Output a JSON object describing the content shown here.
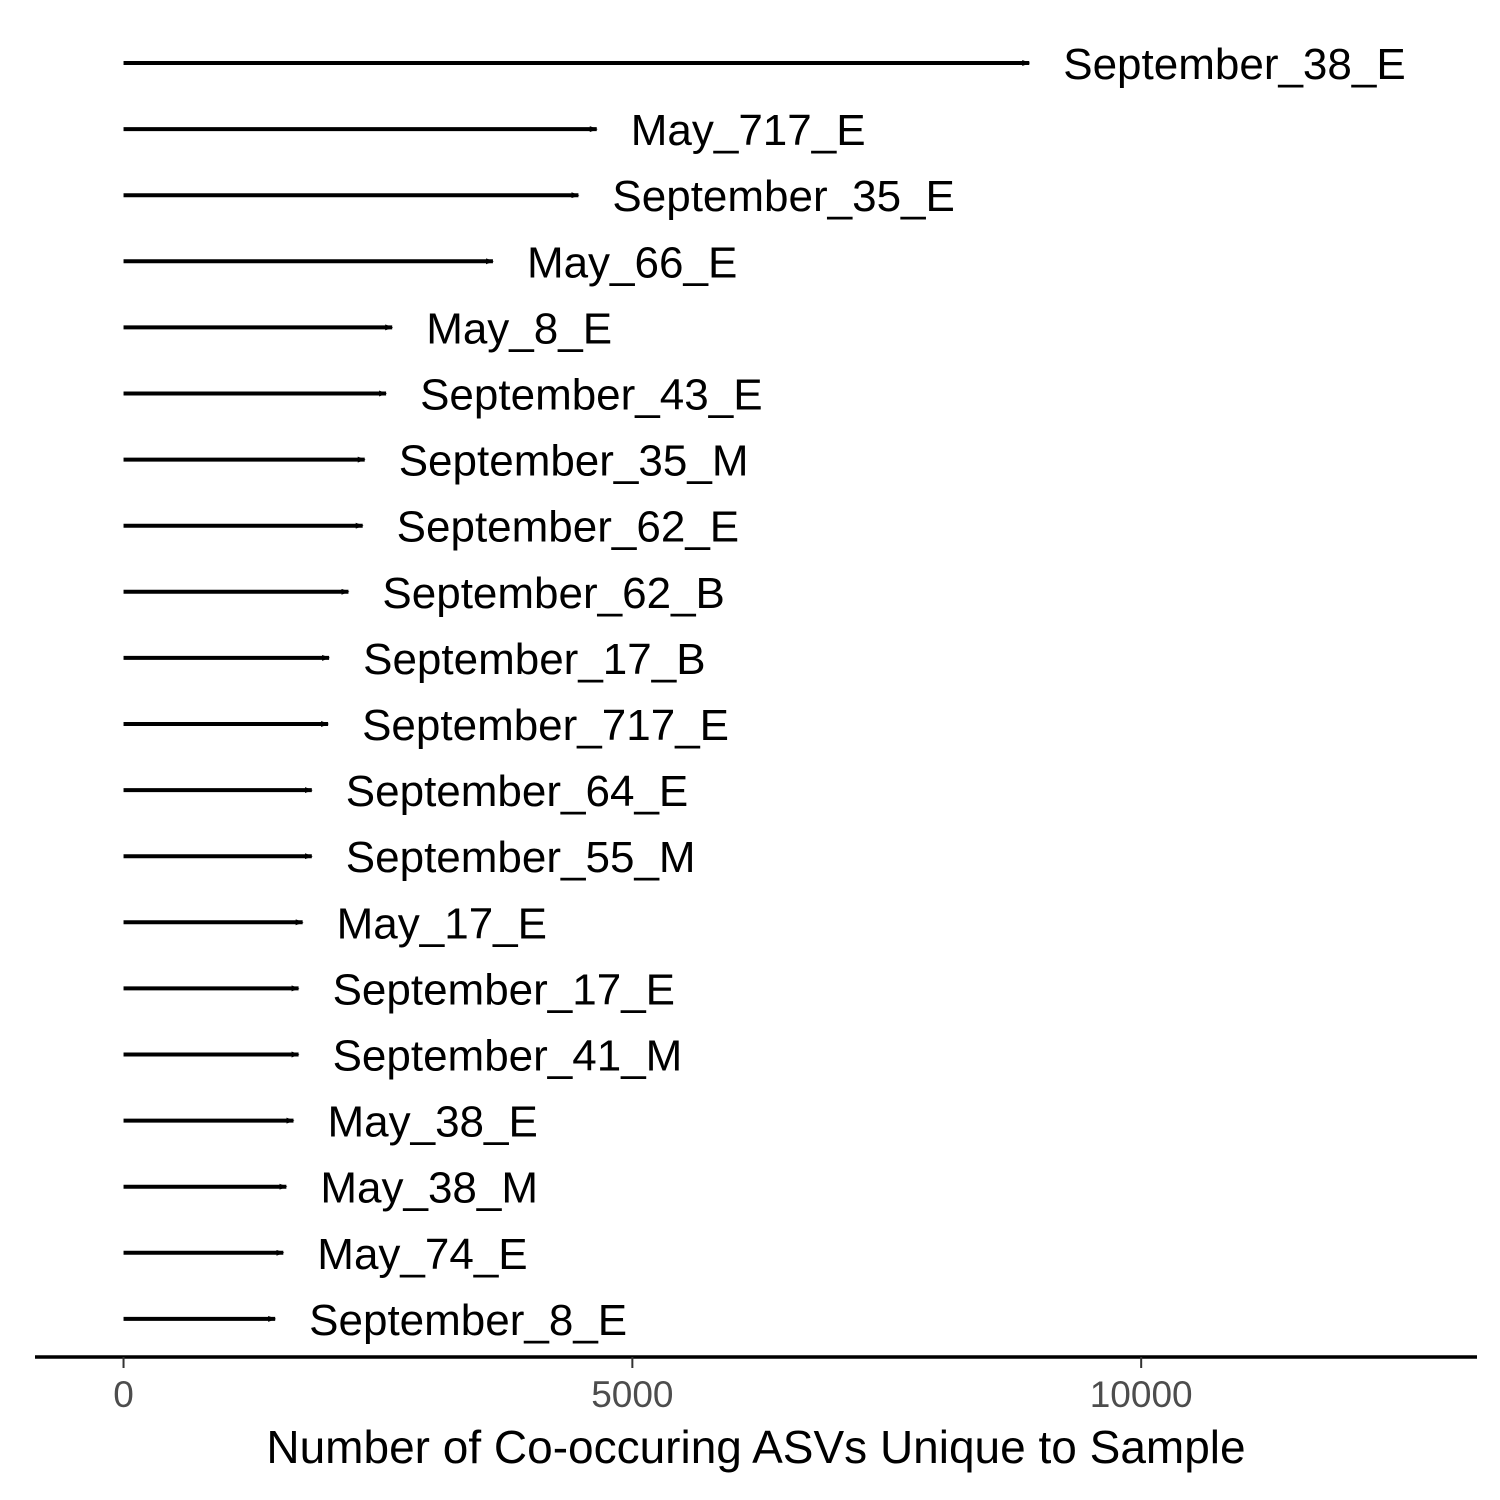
{
  "chart_data": {
    "type": "bar",
    "orientation": "horizontal",
    "mark": "arrow",
    "title": "",
    "xlabel": "Number of Co-occuring ASVs Unique to Sample",
    "ylabel": "",
    "xlim": [
      -870,
      13300
    ],
    "xticks": [
      0,
      5000,
      10000
    ],
    "xtick_labels": [
      "0",
      "5000",
      "10000"
    ],
    "grid": false,
    "legend": "none",
    "categories": [
      "September_38_E",
      "May_717_E",
      "September_35_E",
      "May_66_E",
      "May_8_E",
      "September_43_E",
      "September_35_M",
      "September_62_E",
      "September_62_B",
      "September_17_B",
      "September_717_E",
      "September_64_E",
      "September_55_M",
      "May_17_E",
      "September_17_E",
      "September_41_M",
      "May_38_E",
      "May_38_M",
      "May_74_E",
      "September_8_E"
    ],
    "values": [
      8900,
      4650,
      4470,
      3630,
      2640,
      2580,
      2370,
      2350,
      2210,
      2020,
      2010,
      1850,
      1850,
      1760,
      1720,
      1720,
      1670,
      1600,
      1570,
      1490
    ],
    "color": "#000000"
  }
}
